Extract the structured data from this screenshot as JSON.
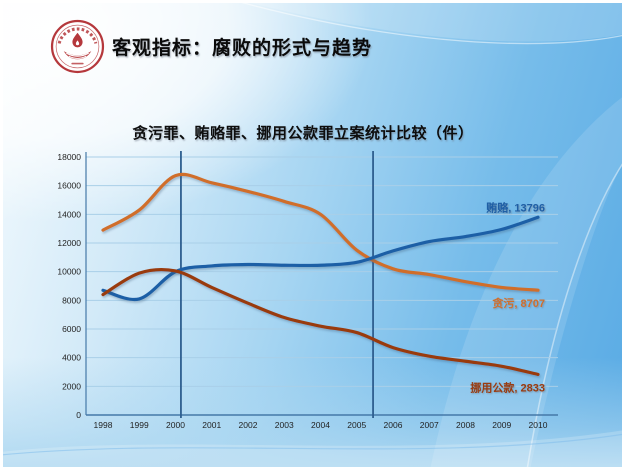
{
  "header": {
    "title": "客观指标：腐败的形式与趋势",
    "logo": "university-red-seal"
  },
  "colors": {
    "seal_red": "#b5383c",
    "grid": "#a9cfe8",
    "axis": "#4579a8",
    "vline": "#2e5e8f",
    "tick_text": "#1f1f1f",
    "slide_blue": "#58aae4"
  },
  "chart_data": {
    "type": "line",
    "title": "贪污罪、贿赂罪、挪用公款罪立案统计比较（件）",
    "xlabel": "",
    "ylabel": "",
    "categories": [
      "1998",
      "1999",
      "2000",
      "2001",
      "2002",
      "2003",
      "2004",
      "2005",
      "2006",
      "2007",
      "2008",
      "2009",
      "2010"
    ],
    "ylim": [
      0,
      18000
    ],
    "ytick_step": 2000,
    "grid": true,
    "legend_position": "end-of-line-labels",
    "series": [
      {
        "name": "贪污",
        "color": "#d06e2c",
        "values": [
          12900,
          14300,
          16700,
          16200,
          15600,
          14900,
          14000,
          11500,
          10200,
          9800,
          9300,
          8900,
          8707
        ],
        "end_label": "贪污, 8707",
        "label_position": "below"
      },
      {
        "name": "贿赂",
        "color": "#1f5fa6",
        "values": [
          8700,
          8100,
          10000,
          10400,
          10500,
          10450,
          10450,
          10650,
          11450,
          12100,
          12450,
          12950,
          13796
        ],
        "end_label": "贿赂, 13796",
        "label_position": "above"
      },
      {
        "name": "挪用公款",
        "color": "#993b10",
        "values": [
          8400,
          9900,
          10050,
          8900,
          7800,
          6800,
          6200,
          5750,
          4700,
          4100,
          3750,
          3400,
          2833
        ],
        "end_label": "挪用公款, 2833",
        "label_position": "below"
      }
    ],
    "annotations": {
      "vlines": [
        {
          "year": 2000.15
        },
        {
          "year": 2005.45
        }
      ]
    }
  }
}
